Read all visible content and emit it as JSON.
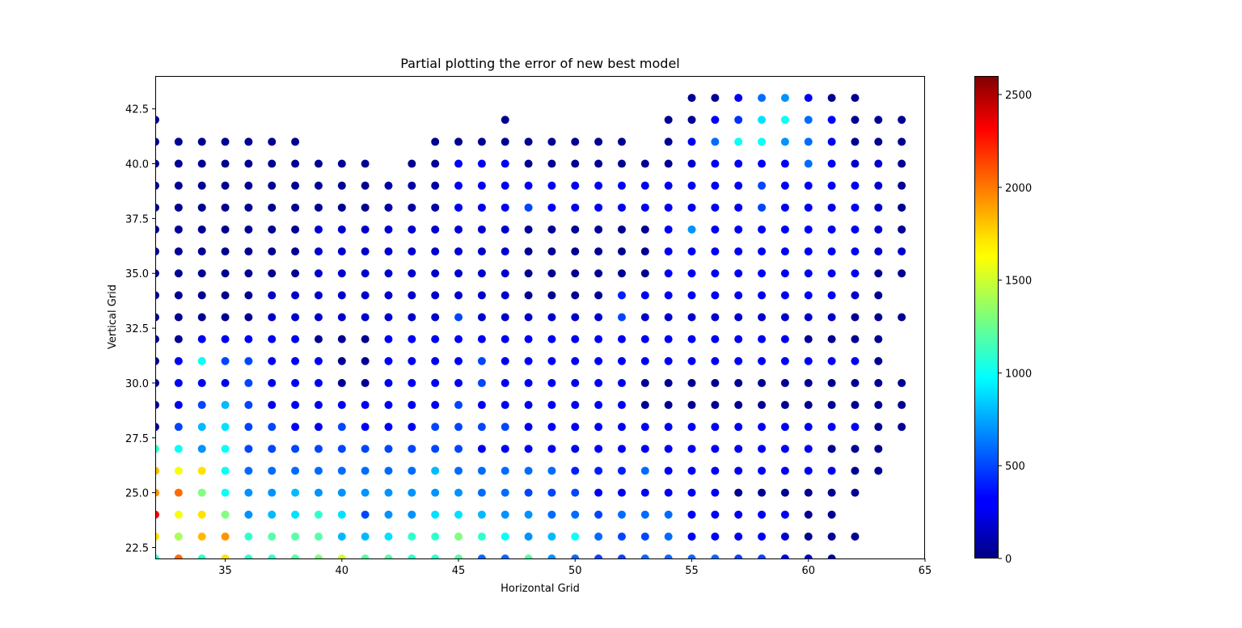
{
  "chart_data": {
    "type": "scatter",
    "title": "Partial plotting the error of new best model",
    "xlabel": "Horizontal Grid",
    "ylabel": "Vertical Grid",
    "xlim": [
      32,
      65
    ],
    "ylim": [
      22,
      44
    ],
    "x_ticks": [
      "35",
      "40",
      "45",
      "50",
      "55",
      "60",
      "65"
    ],
    "y_ticks": [
      "22.5",
      "25.0",
      "27.5",
      "30.0",
      "32.5",
      "35.0",
      "37.5",
      "40.0",
      "42.5"
    ],
    "colorbar": {
      "colormap": "jet",
      "range": [
        0,
        2600
      ],
      "ticks": [
        "0",
        "500",
        "1000",
        "1500",
        "2000",
        "2500"
      ]
    },
    "grid": false,
    "point_rows": [
      {
        "y": 43,
        "x_start": 55,
        "values": [
          50,
          50,
          300,
          600,
          700,
          300,
          50,
          50
        ]
      },
      {
        "y": 42,
        "x_start": 32,
        "values": [
          50
        ]
      },
      {
        "y": 42,
        "x_start": 47,
        "values": [
          50
        ]
      },
      {
        "y": 42,
        "x_start": 54,
        "values": [
          50,
          50,
          300,
          450,
          900,
          1000,
          600,
          300,
          50,
          50,
          50
        ]
      },
      {
        "y": 41,
        "x_start": 32,
        "values": [
          50,
          50,
          50,
          50,
          50,
          50,
          50
        ]
      },
      {
        "y": 41,
        "x_start": 44,
        "values": [
          50,
          50,
          50,
          50,
          50,
          50,
          50,
          50,
          50
        ]
      },
      {
        "y": 41,
        "x_start": 54,
        "values": [
          50,
          300,
          600,
          1000,
          1000,
          700,
          600,
          300,
          50,
          50,
          50
        ]
      },
      {
        "y": 40,
        "x_start": 32,
        "values": [
          50,
          50,
          50,
          50,
          50,
          50,
          50,
          50,
          50,
          50
        ]
      },
      {
        "y": 40,
        "x_start": 43,
        "values": [
          50,
          50,
          300,
          300,
          300,
          50,
          50,
          50,
          50,
          50,
          50,
          50,
          200,
          300,
          300,
          300,
          300,
          600,
          300,
          200,
          200,
          50
        ]
      },
      {
        "y": 39,
        "x_start": 32,
        "values": [
          50,
          50,
          50,
          50,
          50,
          50,
          50,
          50,
          50,
          50,
          100,
          100,
          100,
          300,
          300,
          300,
          300,
          300,
          300,
          300,
          300,
          300,
          300,
          300,
          300,
          300,
          500,
          300,
          300,
          300,
          300,
          200,
          50
        ]
      },
      {
        "y": 38,
        "x_start": 32,
        "values": [
          50,
          50,
          50,
          50,
          50,
          50,
          50,
          50,
          50,
          50,
          100,
          100,
          100,
          300,
          300,
          300,
          500,
          300,
          300,
          300,
          300,
          300,
          300,
          300,
          300,
          300,
          500,
          300,
          300,
          300,
          300,
          200,
          50
        ]
      },
      {
        "y": 37,
        "x_start": 32,
        "values": [
          50,
          50,
          50,
          50,
          50,
          50,
          50,
          200,
          200,
          200,
          200,
          200,
          200,
          200,
          200,
          200,
          50,
          50,
          50,
          50,
          50,
          50,
          300,
          700,
          300,
          300,
          300,
          300,
          300,
          300,
          300,
          200,
          50
        ]
      },
      {
        "y": 36,
        "x_start": 32,
        "values": [
          50,
          50,
          50,
          50,
          50,
          50,
          50,
          200,
          200,
          200,
          200,
          200,
          200,
          200,
          200,
          200,
          50,
          50,
          50,
          50,
          50,
          50,
          300,
          300,
          300,
          300,
          300,
          300,
          300,
          300,
          300,
          200,
          200
        ]
      },
      {
        "y": 35,
        "x_start": 32,
        "values": [
          50,
          50,
          50,
          50,
          50,
          50,
          50,
          200,
          200,
          200,
          200,
          200,
          200,
          200,
          200,
          200,
          50,
          50,
          50,
          50,
          50,
          50,
          300,
          300,
          300,
          300,
          300,
          300,
          300,
          300,
          300,
          50,
          50
        ]
      },
      {
        "y": 34,
        "x_start": 32,
        "values": [
          50,
          50,
          50,
          50,
          50,
          200,
          200,
          200,
          200,
          200,
          200,
          200,
          200,
          200,
          200,
          200,
          50,
          50,
          50,
          50,
          400,
          300,
          300,
          300,
          300,
          300,
          300,
          300,
          300,
          300,
          200,
          50
        ]
      },
      {
        "y": 33,
        "x_start": 32,
        "values": [
          50,
          50,
          50,
          50,
          50,
          200,
          200,
          200,
          200,
          200,
          200,
          200,
          200,
          500,
          200,
          200,
          200,
          200,
          200,
          200,
          500,
          200,
          200,
          200,
          200,
          200,
          200,
          200,
          200,
          200,
          50,
          50,
          50
        ]
      },
      {
        "y": 32,
        "x_start": 32,
        "values": [
          50,
          50,
          300,
          300,
          300,
          300,
          300,
          50,
          50,
          50,
          300,
          300,
          300,
          300,
          300,
          300,
          300,
          300,
          300,
          300,
          300,
          300,
          300,
          300,
          300,
          300,
          300,
          300,
          50,
          50,
          50,
          50
        ]
      },
      {
        "y": 31,
        "x_start": 32,
        "values": [
          50,
          300,
          1000,
          500,
          500,
          300,
          300,
          300,
          50,
          50,
          300,
          300,
          300,
          300,
          500,
          300,
          300,
          300,
          300,
          300,
          300,
          300,
          300,
          300,
          300,
          300,
          300,
          300,
          300,
          300,
          300,
          50
        ]
      },
      {
        "y": 30,
        "x_start": 32,
        "values": [
          50,
          300,
          300,
          300,
          500,
          300,
          300,
          300,
          50,
          50,
          300,
          300,
          300,
          300,
          500,
          300,
          300,
          300,
          300,
          300,
          300,
          50,
          50,
          50,
          50,
          50,
          50,
          50,
          50,
          50,
          50,
          50,
          50
        ]
      },
      {
        "y": 29,
        "x_start": 32,
        "values": [
          50,
          300,
          500,
          800,
          500,
          300,
          300,
          300,
          300,
          300,
          300,
          300,
          300,
          500,
          300,
          300,
          300,
          300,
          300,
          300,
          300,
          50,
          50,
          50,
          50,
          50,
          50,
          50,
          50,
          50,
          50,
          50,
          50
        ]
      },
      {
        "y": 28,
        "x_start": 32,
        "values": [
          50,
          500,
          800,
          900,
          500,
          500,
          300,
          300,
          500,
          300,
          300,
          300,
          500,
          500,
          500,
          500,
          300,
          300,
          300,
          300,
          300,
          300,
          300,
          300,
          300,
          300,
          300,
          300,
          300,
          300,
          300,
          50,
          50
        ]
      },
      {
        "y": 27,
        "x_start": 32,
        "values": [
          1100,
          1000,
          700,
          1000,
          500,
          500,
          500,
          500,
          500,
          500,
          500,
          500,
          500,
          500,
          300,
          300,
          300,
          300,
          300,
          300,
          300,
          300,
          300,
          300,
          300,
          300,
          300,
          300,
          300,
          50,
          50,
          50
        ]
      },
      {
        "y": 26,
        "x_start": 32,
        "values": [
          1800,
          1600,
          1700,
          1000,
          600,
          600,
          600,
          600,
          600,
          600,
          600,
          600,
          800,
          600,
          600,
          600,
          600,
          600,
          400,
          400,
          400,
          600,
          300,
          300,
          300,
          300,
          300,
          300,
          300,
          300,
          50,
          50
        ]
      },
      {
        "y": 25,
        "x_start": 32,
        "values": [
          1900,
          2000,
          1300,
          1000,
          700,
          700,
          800,
          700,
          700,
          700,
          700,
          700,
          700,
          700,
          600,
          600,
          500,
          500,
          500,
          300,
          300,
          300,
          300,
          300,
          300,
          50,
          50,
          50,
          50,
          50,
          50
        ]
      },
      {
        "y": 24,
        "x_start": 32,
        "values": [
          2300,
          1600,
          1700,
          1300,
          700,
          800,
          900,
          1100,
          900,
          500,
          700,
          700,
          900,
          900,
          800,
          700,
          700,
          600,
          600,
          500,
          600,
          600,
          600,
          300,
          300,
          300,
          300,
          300,
          50,
          50
        ]
      },
      {
        "y": 23,
        "x_start": 32,
        "values": [
          1700,
          1400,
          1800,
          1900,
          1100,
          1200,
          1200,
          1200,
          800,
          800,
          900,
          1100,
          1100,
          1300,
          1100,
          1000,
          700,
          800,
          1000,
          600,
          500,
          500,
          600,
          300,
          300,
          300,
          300,
          200,
          50,
          50,
          50
        ]
      },
      {
        "y": 22,
        "x_start": 32,
        "values": [
          1100,
          2000,
          1100,
          1700,
          1100,
          1100,
          1200,
          1300,
          1500,
          1200,
          1200,
          1100,
          1100,
          1200,
          600,
          600,
          1200,
          700,
          600,
          500,
          500,
          600,
          600,
          600,
          600,
          500,
          500,
          300,
          200,
          100
        ]
      }
    ]
  }
}
